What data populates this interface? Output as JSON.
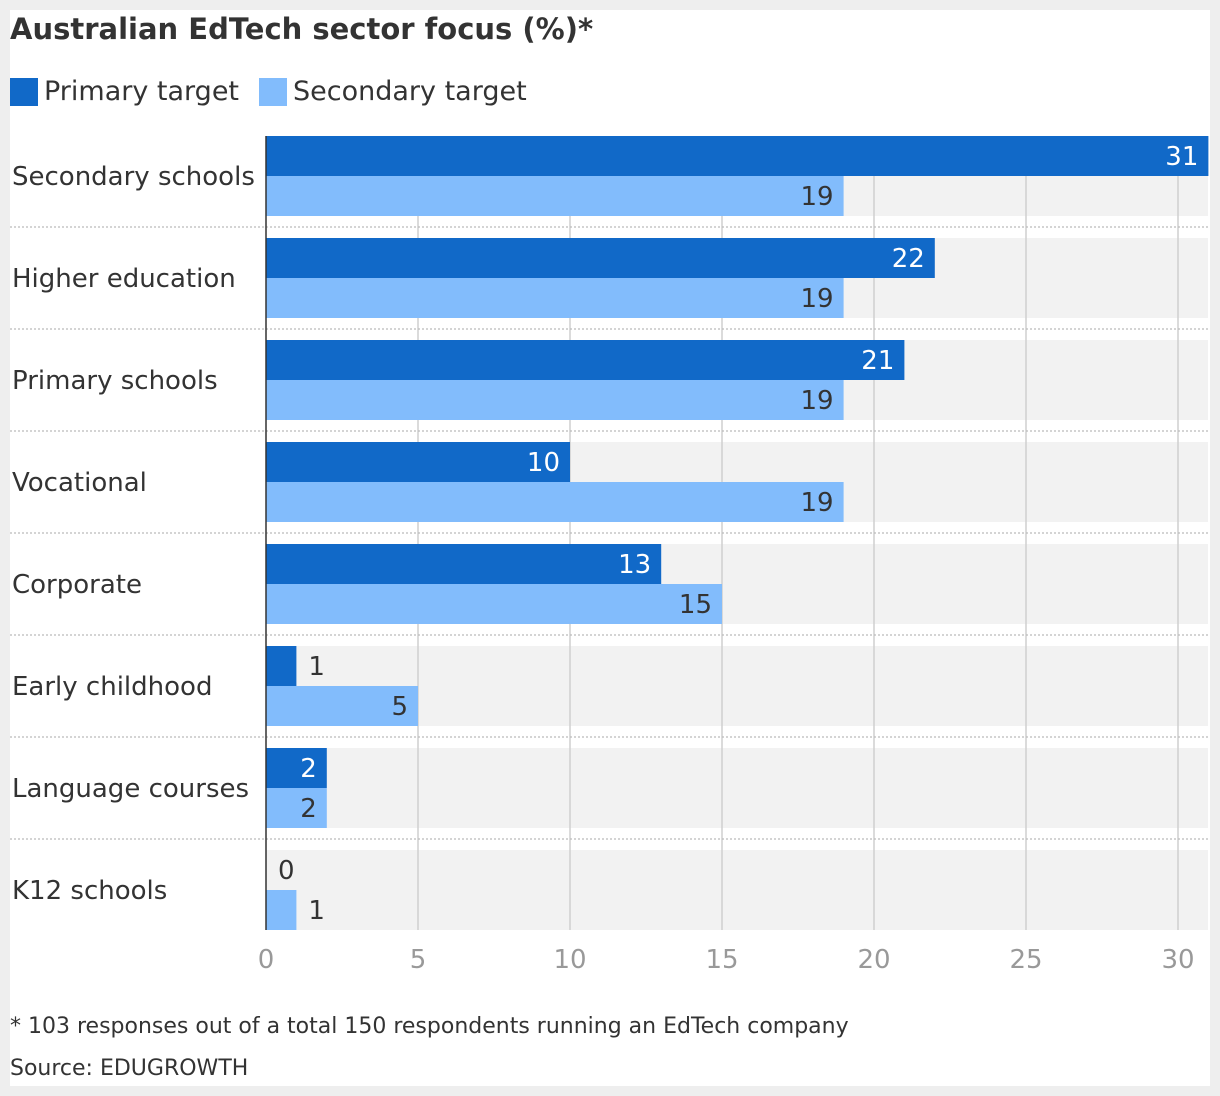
{
  "chart_data": {
    "type": "bar",
    "orientation": "horizontal",
    "title": "Australian EdTech sector focus (%)*",
    "categories": [
      "Secondary schools",
      "Higher education",
      "Primary schools",
      "Vocational",
      "Corporate",
      "Early childhood",
      "Language courses",
      "K12 schools"
    ],
    "series": [
      {
        "name": "Primary target",
        "color": "#1169c8",
        "values": [
          31,
          22,
          21,
          10,
          13,
          1,
          2,
          0
        ]
      },
      {
        "name": "Secondary target",
        "color": "#82bcfc",
        "values": [
          19,
          19,
          19,
          19,
          15,
          5,
          2,
          1
        ]
      }
    ],
    "x_ticks": [
      "0",
      "5",
      "10",
      "15",
      "20",
      "25",
      "30"
    ],
    "xlim": [
      0,
      31
    ],
    "grid": true,
    "legend_position": "top-left",
    "footnote": "* 103 responses out of a total 150 respondents running an EdTech company",
    "source": "Source: EDUGROWTH"
  }
}
